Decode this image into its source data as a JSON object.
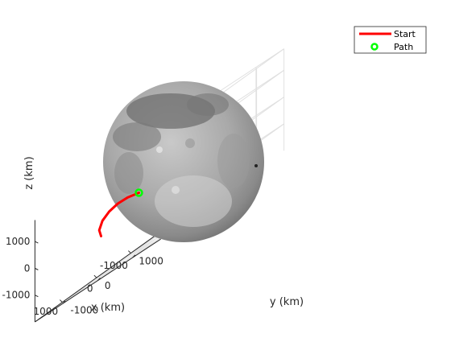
{
  "chart_data": {
    "type": "line",
    "view": "3d",
    "title": "",
    "xlabel": "x (km)",
    "ylabel": "y (km)",
    "zlabel": "z (km)",
    "x_ticks": [
      "1000",
      "0",
      "-1000"
    ],
    "y_ticks": [
      "1000",
      "0",
      "-1000"
    ],
    "z_ticks": [
      "1000",
      "0",
      "-1000"
    ],
    "grid": true,
    "legend_position": "top-right",
    "legend": [
      {
        "label": "Start",
        "marker": "line",
        "color": "#ff0000"
      },
      {
        "label": "Path",
        "marker": "circle",
        "color": "#00ff00"
      }
    ],
    "series": [
      {
        "name": "Start",
        "color": "#ff0000",
        "points": [
          {
            "x": 250,
            "y": -1450,
            "z": -450
          },
          {
            "x": 500,
            "y": -1250,
            "z": -200
          },
          {
            "x": 700,
            "y": -950,
            "z": 50
          },
          {
            "x": 850,
            "y": -600,
            "z": 200
          },
          {
            "x": 950,
            "y": -250,
            "z": 260
          },
          {
            "x": 1000,
            "y": 100,
            "z": 220
          },
          {
            "x": 980,
            "y": 400,
            "z": 100
          }
        ]
      },
      {
        "name": "Path",
        "color": "#00ff00",
        "points": [
          {
            "x": 980,
            "y": 400,
            "z": 100
          }
        ]
      }
    ],
    "surface": {
      "body": "sphere",
      "radius_km": 1737
    }
  }
}
